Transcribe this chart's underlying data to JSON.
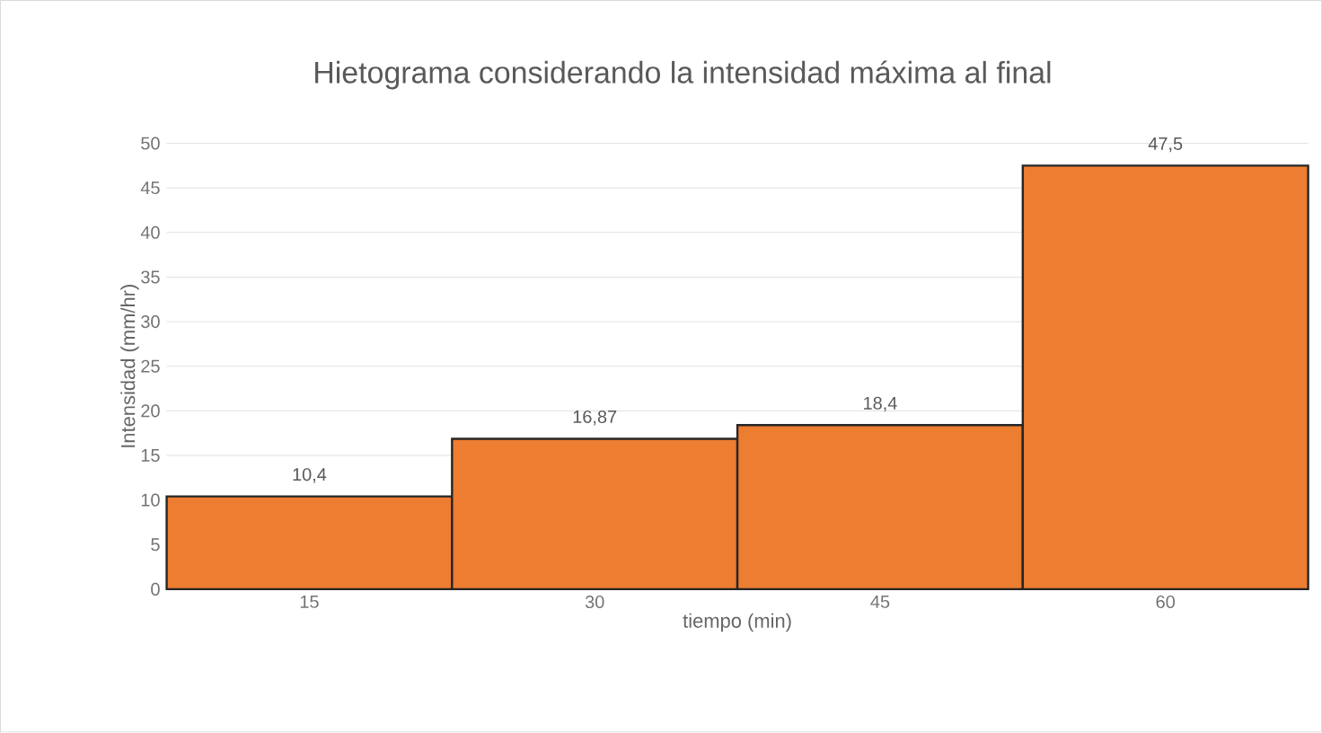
{
  "chart_data": {
    "type": "bar",
    "title": "Hietograma considerando  la intensidad máxima al final",
    "xlabel": "tiempo (min)",
    "ylabel": "Intensidad (mm/hr)",
    "categories": [
      "15",
      "30",
      "45",
      "60"
    ],
    "values": [
      10.4,
      16.87,
      18.4,
      47.5
    ],
    "value_labels": [
      "10,4",
      "16,87",
      "18,4",
      "47,5"
    ],
    "color": "#ed7d31",
    "ylim": [
      0,
      50
    ],
    "yticks": [
      0,
      5,
      10,
      15,
      20,
      25,
      30,
      35,
      40,
      45,
      50
    ],
    "grid": "y"
  }
}
